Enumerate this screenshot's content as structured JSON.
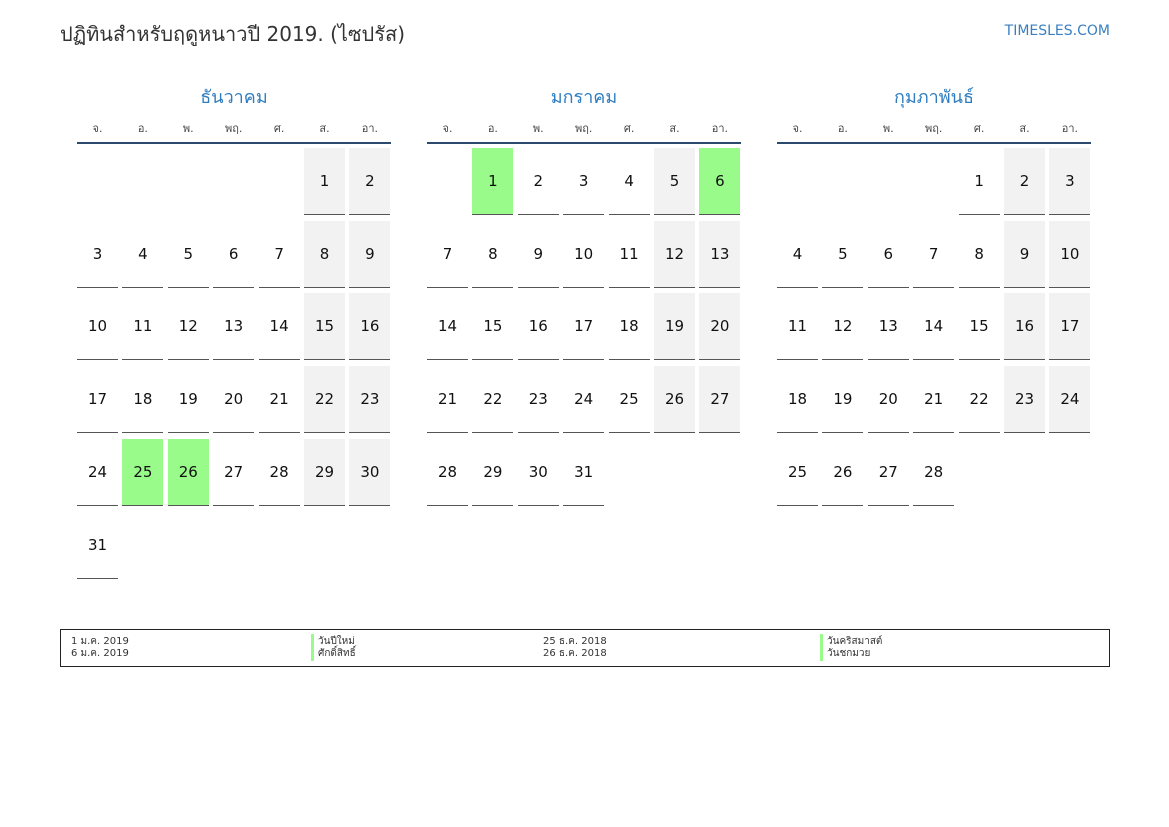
{
  "header": {
    "title": "ปฏิทินสำหรับฤดูหนาวปี 2019. (ไซปรัส)",
    "brand": "TIMESLES.COM"
  },
  "weekdays": [
    "จ.",
    "อ.",
    "พ.",
    "พฤ.",
    "ศ.",
    "ส.",
    "อา."
  ],
  "months": [
    {
      "name": "ธันวาคม",
      "holidays": [
        25,
        26
      ],
      "weeks": [
        [
          null,
          null,
          null,
          null,
          null,
          1,
          2
        ],
        [
          3,
          4,
          5,
          6,
          7,
          8,
          9
        ],
        [
          10,
          11,
          12,
          13,
          14,
          15,
          16
        ],
        [
          17,
          18,
          19,
          20,
          21,
          22,
          23
        ],
        [
          24,
          25,
          26,
          27,
          28,
          29,
          30
        ],
        [
          31,
          null,
          null,
          null,
          null,
          null,
          null
        ]
      ]
    },
    {
      "name": "มกราคม",
      "holidays": [
        1,
        6
      ],
      "weeks": [
        [
          null,
          1,
          2,
          3,
          4,
          5,
          6
        ],
        [
          7,
          8,
          9,
          10,
          11,
          12,
          13
        ],
        [
          14,
          15,
          16,
          17,
          18,
          19,
          20
        ],
        [
          21,
          22,
          23,
          24,
          25,
          26,
          27
        ],
        [
          28,
          29,
          30,
          31,
          null,
          null,
          null
        ]
      ]
    },
    {
      "name": "กุมภาพันธ์",
      "holidays": [],
      "weeks": [
        [
          null,
          null,
          null,
          null,
          1,
          2,
          3
        ],
        [
          4,
          5,
          6,
          7,
          8,
          9,
          10
        ],
        [
          11,
          12,
          13,
          14,
          15,
          16,
          17
        ],
        [
          18,
          19,
          20,
          21,
          22,
          23,
          24
        ],
        [
          25,
          26,
          27,
          28,
          null,
          null,
          null
        ]
      ]
    }
  ],
  "legend": [
    {
      "date": "1 ม.ค. 2019",
      "name": "วันปีใหม่"
    },
    {
      "date": "6 ม.ค. 2019",
      "name": "ศักดิ์สิทธิ์"
    },
    {
      "date": "25 ธ.ค. 2018",
      "name": "วันคริสมาสต์"
    },
    {
      "date": "26 ธ.ค. 2018",
      "name": "วันชกมวย"
    }
  ]
}
